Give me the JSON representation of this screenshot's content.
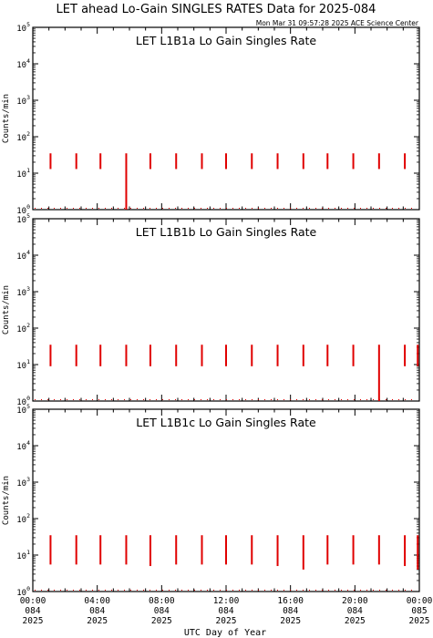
{
  "title": "LET ahead Lo-Gain SINGLES RATES Data for 2025-084",
  "timestamp": "Mon Mar 31 09:57:28 2025 ACE Science Center",
  "xlabel": "UTC Day of Year",
  "x_ticks": [
    {
      "time": "00:00",
      "doy": "084",
      "year": "2025"
    },
    {
      "time": "04:00",
      "doy": "084",
      "year": "2025"
    },
    {
      "time": "08:00",
      "doy": "084",
      "year": "2025"
    },
    {
      "time": "12:00",
      "doy": "084",
      "year": "2025"
    },
    {
      "time": "16:00",
      "doy": "084",
      "year": "2025"
    },
    {
      "time": "20:00",
      "doy": "084",
      "year": "2025"
    },
    {
      "time": "00:00",
      "doy": "085",
      "year": "2025"
    }
  ],
  "colors": {
    "data": "#e00000",
    "panel_title": "#1a1acc",
    "axes": "#000000"
  },
  "chart_data": [
    {
      "type": "line",
      "title": "LET L1B1a Lo Gain Singles Rate",
      "ylabel": "Counts/min",
      "yscale": "log",
      "ylim": [
        1,
        100000
      ],
      "xlim_hours": [
        0,
        24
      ],
      "x_unit": "UTC hour of day 084",
      "baseline": 1,
      "spikes": [
        {
          "x": 1.1,
          "top": 35,
          "bottom": 13
        },
        {
          "x": 2.7,
          "top": 35,
          "bottom": 13
        },
        {
          "x": 4.2,
          "top": 35,
          "bottom": 13
        },
        {
          "x": 5.8,
          "top": 35,
          "bottom": 1
        },
        {
          "x": 7.3,
          "top": 35,
          "bottom": 13
        },
        {
          "x": 8.9,
          "top": 35,
          "bottom": 13
        },
        {
          "x": 10.5,
          "top": 35,
          "bottom": 13
        },
        {
          "x": 12.0,
          "top": 35,
          "bottom": 13
        },
        {
          "x": 13.6,
          "top": 35,
          "bottom": 13
        },
        {
          "x": 15.2,
          "top": 35,
          "bottom": 13
        },
        {
          "x": 16.8,
          "top": 35,
          "bottom": 13
        },
        {
          "x": 18.3,
          "top": 35,
          "bottom": 13
        },
        {
          "x": 19.9,
          "top": 35,
          "bottom": 13
        },
        {
          "x": 21.5,
          "top": 35,
          "bottom": 13
        },
        {
          "x": 23.1,
          "top": 35,
          "bottom": 13
        }
      ]
    },
    {
      "type": "line",
      "title": "LET L1B1b Lo Gain Singles Rate",
      "ylabel": "Counts/min",
      "yscale": "log",
      "ylim": [
        1,
        100000
      ],
      "xlim_hours": [
        0,
        24
      ],
      "x_unit": "UTC hour of day 084",
      "baseline": 1,
      "spikes": [
        {
          "x": 1.1,
          "top": 35,
          "bottom": 9
        },
        {
          "x": 2.7,
          "top": 35,
          "bottom": 9
        },
        {
          "x": 4.2,
          "top": 35,
          "bottom": 9
        },
        {
          "x": 5.8,
          "top": 35,
          "bottom": 9
        },
        {
          "x": 7.3,
          "top": 35,
          "bottom": 9
        },
        {
          "x": 8.9,
          "top": 35,
          "bottom": 9
        },
        {
          "x": 10.5,
          "top": 35,
          "bottom": 9
        },
        {
          "x": 12.0,
          "top": 35,
          "bottom": 9
        },
        {
          "x": 13.6,
          "top": 35,
          "bottom": 9
        },
        {
          "x": 15.2,
          "top": 35,
          "bottom": 9
        },
        {
          "x": 16.8,
          "top": 35,
          "bottom": 9
        },
        {
          "x": 18.3,
          "top": 35,
          "bottom": 9
        },
        {
          "x": 19.9,
          "top": 35,
          "bottom": 9
        },
        {
          "x": 21.5,
          "top": 35,
          "bottom": 1
        },
        {
          "x": 23.1,
          "top": 35,
          "bottom": 9
        },
        {
          "x": 23.9,
          "top": 35,
          "bottom": 9
        }
      ]
    },
    {
      "type": "line",
      "title": "LET L1B1c Lo Gain Singles Rate",
      "ylabel": "Counts/min",
      "yscale": "log",
      "ylim": [
        1,
        100000
      ],
      "xlim_hours": [
        0,
        24
      ],
      "x_unit": "UTC hour of day 084",
      "baseline": 1,
      "spikes": [
        {
          "x": 1.1,
          "top": 35,
          "bottom": 5.5
        },
        {
          "x": 2.7,
          "top": 35,
          "bottom": 5.5
        },
        {
          "x": 4.2,
          "top": 35,
          "bottom": 5.5
        },
        {
          "x": 5.8,
          "top": 35,
          "bottom": 5.5
        },
        {
          "x": 7.3,
          "top": 35,
          "bottom": 5
        },
        {
          "x": 8.9,
          "top": 35,
          "bottom": 5.5
        },
        {
          "x": 10.5,
          "top": 35,
          "bottom": 5.5
        },
        {
          "x": 12.0,
          "top": 35,
          "bottom": 5.5
        },
        {
          "x": 13.6,
          "top": 35,
          "bottom": 5.5
        },
        {
          "x": 15.2,
          "top": 35,
          "bottom": 5
        },
        {
          "x": 16.8,
          "top": 35,
          "bottom": 4
        },
        {
          "x": 18.3,
          "top": 35,
          "bottom": 5.5
        },
        {
          "x": 19.9,
          "top": 35,
          "bottom": 5.5
        },
        {
          "x": 21.5,
          "top": 35,
          "bottom": 5.5
        },
        {
          "x": 23.1,
          "top": 35,
          "bottom": 5
        },
        {
          "x": 23.9,
          "top": 35,
          "bottom": 4
        }
      ]
    }
  ]
}
